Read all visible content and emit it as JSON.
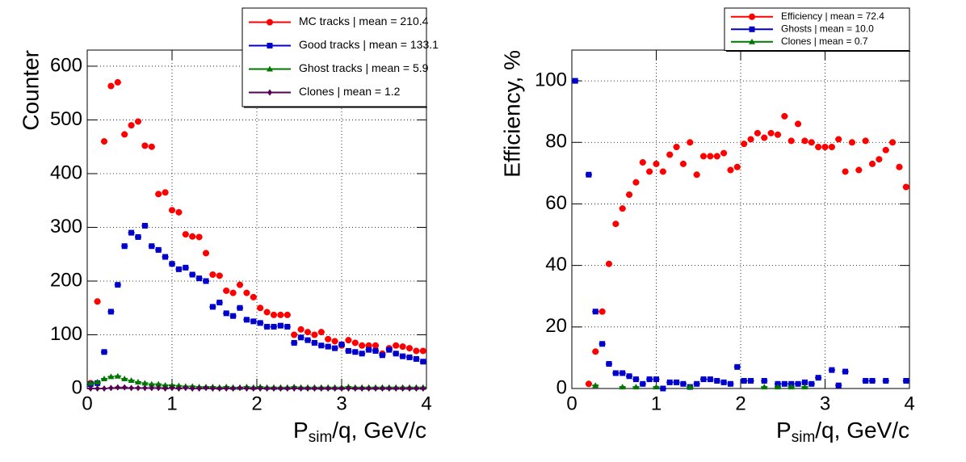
{
  "chart_data": [
    {
      "type": "scatter",
      "ylabel": "Counter",
      "xlabel_parts": [
        "P",
        "sim",
        "/q, GeV/c"
      ],
      "xlim": [
        0,
        4
      ],
      "ylim": [
        0,
        630
      ],
      "xticks": [
        0,
        1,
        2,
        3,
        4
      ],
      "yticks": [
        0,
        100,
        200,
        300,
        400,
        500,
        600
      ],
      "grid": true,
      "legend": "top-right",
      "x": [
        0.04,
        0.12,
        0.2,
        0.28,
        0.36,
        0.44,
        0.52,
        0.6,
        0.68,
        0.76,
        0.84,
        0.92,
        1,
        1.08,
        1.16,
        1.24,
        1.32,
        1.4,
        1.48,
        1.56,
        1.64,
        1.72,
        1.8,
        1.88,
        1.96,
        2.04,
        2.12,
        2.2,
        2.28,
        2.36,
        2.44,
        2.52,
        2.6,
        2.68,
        2.76,
        2.84,
        2.92,
        3,
        3.08,
        3.16,
        3.24,
        3.32,
        3.4,
        3.48,
        3.56,
        3.64,
        3.72,
        3.8,
        3.88,
        3.96
      ],
      "series": [
        {
          "name": "MC tracks | mean =  210.4",
          "color": "#ff0000",
          "marker": "circle",
          "values": [
            10,
            162,
            460,
            563,
            570,
            473,
            490,
            497,
            452,
            450,
            362,
            365,
            332,
            328,
            287,
            283,
            282,
            252,
            212,
            210,
            182,
            178,
            193,
            178,
            170,
            150,
            142,
            137,
            137,
            137,
            100,
            110,
            105,
            100,
            105,
            92,
            88,
            80,
            90,
            85,
            80,
            80,
            80,
            65,
            75,
            80,
            78,
            75,
            70,
            70
          ]
        },
        {
          "name": "Good tracks | mean =  133.1",
          "color": "#0000cc",
          "marker": "square",
          "values": [
            8,
            10,
            68,
            143,
            193,
            265,
            290,
            282,
            303,
            265,
            258,
            245,
            232,
            222,
            225,
            212,
            205,
            200,
            152,
            160,
            140,
            135,
            150,
            128,
            125,
            122,
            115,
            115,
            117,
            115,
            85,
            95,
            90,
            85,
            80,
            78,
            75,
            82,
            70,
            68,
            65,
            72,
            70,
            62,
            72,
            65,
            60,
            58,
            55,
            50
          ]
        },
        {
          "name": "Ghost tracks | mean =  5.9",
          "color": "#007700",
          "marker": "triangle",
          "values": [
            10,
            12,
            18,
            22,
            23,
            18,
            15,
            12,
            10,
            8,
            8,
            6,
            6,
            5,
            4,
            4,
            3,
            3,
            3,
            2,
            3,
            2,
            2,
            3,
            2,
            3,
            2,
            2,
            2,
            2,
            3,
            2,
            2,
            2,
            2,
            2,
            2,
            2,
            3,
            2,
            2,
            2,
            2,
            2,
            2,
            2,
            2,
            2,
            2,
            2
          ]
        },
        {
          "name": "Clones | mean =  1.2",
          "color": "#550055",
          "marker": "diamond",
          "values": [
            0,
            0,
            0,
            1,
            2,
            2,
            1,
            1,
            1,
            1,
            1,
            0,
            1,
            0,
            1,
            0,
            0,
            1,
            0,
            0,
            0,
            0,
            1,
            0,
            0,
            0,
            0,
            0,
            0,
            0,
            0,
            0,
            0,
            0,
            0,
            0,
            0,
            0,
            0,
            0,
            0,
            0,
            0,
            0,
            0,
            0,
            0,
            0,
            0,
            0
          ]
        }
      ]
    },
    {
      "type": "scatter",
      "ylabel": "Efficiency, %",
      "xlabel_parts": [
        "P",
        "sim",
        "/q, GeV/c"
      ],
      "xlim": [
        0,
        4
      ],
      "ylim": [
        0,
        110
      ],
      "xticks": [
        0,
        1,
        2,
        3,
        4
      ],
      "yticks": [
        0,
        20,
        40,
        60,
        80,
        100
      ],
      "grid": true,
      "legend": "top-right",
      "x": [
        0.04,
        0.12,
        0.2,
        0.28,
        0.36,
        0.44,
        0.52,
        0.6,
        0.68,
        0.76,
        0.84,
        0.92,
        1,
        1.08,
        1.16,
        1.24,
        1.32,
        1.4,
        1.48,
        1.56,
        1.64,
        1.72,
        1.8,
        1.88,
        1.96,
        2.04,
        2.12,
        2.2,
        2.28,
        2.36,
        2.44,
        2.52,
        2.6,
        2.68,
        2.76,
        2.84,
        2.92,
        3,
        3.08,
        3.16,
        3.24,
        3.32,
        3.4,
        3.48,
        3.56,
        3.64,
        3.72,
        3.8,
        3.88,
        3.96
      ],
      "series": [
        {
          "name": "Efficiency | mean =  72.4",
          "color": "#ff0000",
          "marker": "circle",
          "values": [
            null,
            null,
            1.5,
            12,
            25,
            40.5,
            53.5,
            58.5,
            63,
            67,
            73.5,
            70.5,
            73,
            70.5,
            76,
            78.5,
            73,
            80,
            69.5,
            75.5,
            75.5,
            75.5,
            76.5,
            71,
            72,
            79.5,
            81,
            83,
            81.5,
            83,
            82.5,
            88.5,
            80.5,
            86,
            80.5,
            80,
            78.5,
            78.5,
            78.5,
            81,
            70.5,
            80,
            71,
            80.5,
            73,
            74.5,
            77.5,
            80,
            72,
            65.5
          ]
        },
        {
          "name": "Ghosts | mean =  10.0",
          "color": "#0000cc",
          "marker": "square",
          "values": [
            100,
            null,
            69.5,
            25,
            14.5,
            8,
            5,
            5,
            4,
            3,
            1.5,
            3,
            3,
            0,
            2,
            2,
            1.5,
            0.5,
            1.5,
            3,
            3,
            2.5,
            2,
            1.5,
            7,
            2.5,
            2.5,
            null,
            2.5,
            null,
            1.5,
            1.5,
            1.5,
            1.5,
            2,
            1.5,
            3.5,
            null,
            6,
            1,
            5.5,
            null,
            null,
            2.5,
            2.5,
            null,
            2.5,
            null,
            null,
            2.5
          ]
        },
        {
          "name": "Clones | mean =  0.7",
          "color": "#007700",
          "marker": "triangle",
          "values": [
            null,
            null,
            null,
            1,
            null,
            null,
            null,
            0.5,
            null,
            0.5,
            null,
            null,
            0.5,
            null,
            null,
            null,
            null,
            0.5,
            null,
            null,
            null,
            null,
            null,
            null,
            null,
            null,
            null,
            null,
            0.5,
            null,
            0.5,
            null,
            0.5,
            null,
            0.5,
            null,
            null,
            null,
            null,
            null,
            null,
            null,
            null,
            null,
            null,
            null,
            null,
            null,
            null,
            null
          ]
        }
      ]
    }
  ]
}
